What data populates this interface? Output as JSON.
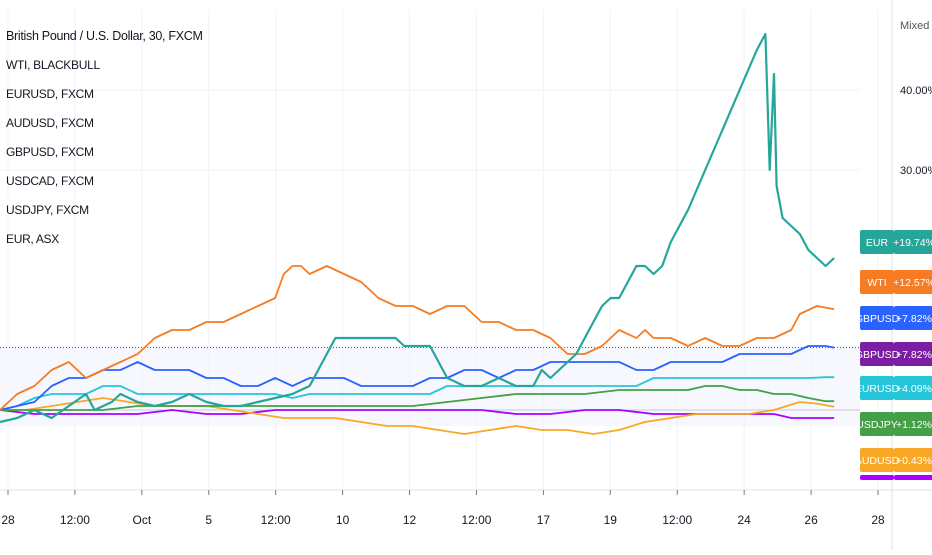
{
  "chart_data": {
    "type": "line",
    "title": "British Pound / U.S. Dollar, 30, FXCM",
    "scale_mode": "Mixed",
    "legend_placement": "top-left",
    "legend": [
      "British Pound / U.S. Dollar, 30, FXCM",
      "WTI, BLACKBULL",
      "EURUSD, FXCM",
      "AUDUSD, FXCM",
      "GBPUSD, FXCM",
      "USDCAD, FXCM",
      "USDJPY, FXCM",
      "EUR, ASX"
    ],
    "x_ticks": [
      "28",
      "12:00",
      "Oct",
      "5",
      "12:00",
      "10",
      "12",
      "12:00",
      "17",
      "19",
      "12:00",
      "24",
      "26",
      "28"
    ],
    "y_ticks": [
      "40.00%",
      "30.00%"
    ],
    "ylim": [
      -10,
      50
    ],
    "grid": true,
    "reference_line": {
      "label": "GBPUSD",
      "value": 7.82
    },
    "series": [
      {
        "name": "EUR",
        "color": "#26a69a",
        "last_label": "+19.74%",
        "points": [
          [
            0,
            -1.5
          ],
          [
            2,
            -1
          ],
          [
            4,
            0
          ],
          [
            6,
            -1
          ],
          [
            8,
            0.5
          ],
          [
            10,
            2
          ],
          [
            11,
            0
          ],
          [
            13,
            1
          ],
          [
            14,
            2
          ],
          [
            16,
            1
          ],
          [
            18,
            0.5
          ],
          [
            20,
            1
          ],
          [
            22,
            2
          ],
          [
            24,
            1
          ],
          [
            26,
            0.5
          ],
          [
            28,
            0.5
          ],
          [
            30,
            1
          ],
          [
            32,
            1.5
          ],
          [
            34,
            2
          ],
          [
            36,
            3
          ],
          [
            37,
            5
          ],
          [
            38,
            7
          ],
          [
            39,
            9
          ],
          [
            40,
            9
          ],
          [
            42,
            9
          ],
          [
            44,
            9
          ],
          [
            46,
            9
          ],
          [
            47,
            8
          ],
          [
            48,
            8
          ],
          [
            50,
            8
          ],
          [
            52,
            4
          ],
          [
            54,
            3
          ],
          [
            56,
            3
          ],
          [
            58,
            4
          ],
          [
            60,
            3
          ],
          [
            62,
            3
          ],
          [
            63,
            5
          ],
          [
            64,
            4
          ],
          [
            65,
            5
          ],
          [
            66,
            6
          ],
          [
            67,
            7
          ],
          [
            68,
            9
          ],
          [
            69,
            11
          ],
          [
            70,
            13
          ],
          [
            71,
            14
          ],
          [
            72,
            14
          ],
          [
            73,
            16
          ],
          [
            74,
            18
          ],
          [
            75,
            18
          ],
          [
            76,
            17
          ],
          [
            77,
            18
          ],
          [
            78,
            21
          ],
          [
            80,
            25
          ],
          [
            82,
            30
          ],
          [
            84,
            35
          ],
          [
            86,
            40
          ],
          [
            88,
            45
          ],
          [
            89,
            47
          ],
          [
            89.5,
            30
          ],
          [
            90,
            42
          ],
          [
            90.3,
            28
          ],
          [
            91,
            24
          ],
          [
            92,
            23
          ],
          [
            93,
            22
          ],
          [
            94,
            20
          ],
          [
            95,
            19
          ],
          [
            96,
            18
          ],
          [
            97,
            19
          ]
        ]
      },
      {
        "name": "WTI",
        "color": "#f57c22",
        "last_label": "+12.57%",
        "points": [
          [
            0,
            0
          ],
          [
            2,
            2
          ],
          [
            4,
            3
          ],
          [
            6,
            5
          ],
          [
            8,
            6
          ],
          [
            10,
            4
          ],
          [
            12,
            5
          ],
          [
            14,
            6
          ],
          [
            16,
            7
          ],
          [
            18,
            9
          ],
          [
            20,
            10
          ],
          [
            22,
            10
          ],
          [
            24,
            11
          ],
          [
            26,
            11
          ],
          [
            28,
            12
          ],
          [
            30,
            13
          ],
          [
            32,
            14
          ],
          [
            33,
            17
          ],
          [
            34,
            18
          ],
          [
            35,
            18
          ],
          [
            36,
            17
          ],
          [
            38,
            18
          ],
          [
            40,
            17
          ],
          [
            42,
            16
          ],
          [
            44,
            14
          ],
          [
            46,
            13
          ],
          [
            48,
            13
          ],
          [
            50,
            12
          ],
          [
            52,
            13
          ],
          [
            54,
            13
          ],
          [
            56,
            11
          ],
          [
            58,
            11
          ],
          [
            60,
            10
          ],
          [
            62,
            10
          ],
          [
            64,
            9
          ],
          [
            65,
            8
          ],
          [
            66,
            7
          ],
          [
            68,
            7
          ],
          [
            70,
            8
          ],
          [
            72,
            10
          ],
          [
            74,
            9
          ],
          [
            75,
            10
          ],
          [
            76,
            9
          ],
          [
            78,
            9
          ],
          [
            80,
            8
          ],
          [
            82,
            9
          ],
          [
            84,
            8
          ],
          [
            86,
            8
          ],
          [
            88,
            9
          ],
          [
            90,
            9
          ],
          [
            92,
            10
          ],
          [
            93,
            12
          ],
          [
            95,
            13
          ],
          [
            97,
            12.6
          ]
        ]
      },
      {
        "name": "GBPUSD",
        "color": "#2962ff",
        "last_label": "+7.82%",
        "points": [
          [
            0,
            0
          ],
          [
            2,
            0.5
          ],
          [
            4,
            1
          ],
          [
            6,
            3
          ],
          [
            8,
            4
          ],
          [
            10,
            4
          ],
          [
            12,
            5
          ],
          [
            14,
            5
          ],
          [
            16,
            6
          ],
          [
            18,
            5
          ],
          [
            20,
            5
          ],
          [
            22,
            5
          ],
          [
            24,
            4
          ],
          [
            26,
            4
          ],
          [
            28,
            3
          ],
          [
            30,
            3
          ],
          [
            32,
            4
          ],
          [
            34,
            3
          ],
          [
            36,
            4
          ],
          [
            38,
            4
          ],
          [
            40,
            4
          ],
          [
            42,
            3
          ],
          [
            44,
            3
          ],
          [
            46,
            3
          ],
          [
            48,
            3
          ],
          [
            50,
            4
          ],
          [
            52,
            4
          ],
          [
            54,
            5
          ],
          [
            56,
            5
          ],
          [
            58,
            4
          ],
          [
            60,
            5
          ],
          [
            62,
            5
          ],
          [
            64,
            6
          ],
          [
            66,
            6
          ],
          [
            68,
            6
          ],
          [
            70,
            6
          ],
          [
            72,
            6
          ],
          [
            74,
            5
          ],
          [
            76,
            5
          ],
          [
            78,
            6
          ],
          [
            80,
            6
          ],
          [
            82,
            6
          ],
          [
            84,
            6
          ],
          [
            86,
            7
          ],
          [
            88,
            7
          ],
          [
            90,
            7
          ],
          [
            92,
            7
          ],
          [
            94,
            8
          ],
          [
            96,
            8
          ],
          [
            97,
            7.8
          ]
        ]
      },
      {
        "name": "EURUSD",
        "color": "#26c6da",
        "last_label": "+4.09%",
        "points": [
          [
            0,
            0
          ],
          [
            2,
            0.5
          ],
          [
            4,
            1.5
          ],
          [
            6,
            2
          ],
          [
            8,
            2
          ],
          [
            10,
            2
          ],
          [
            12,
            3
          ],
          [
            14,
            3
          ],
          [
            16,
            2
          ],
          [
            18,
            2
          ],
          [
            20,
            2
          ],
          [
            22,
            2
          ],
          [
            24,
            2
          ],
          [
            26,
            2
          ],
          [
            28,
            2
          ],
          [
            30,
            2
          ],
          [
            32,
            2
          ],
          [
            34,
            1.5
          ],
          [
            36,
            2
          ],
          [
            38,
            2
          ],
          [
            40,
            2
          ],
          [
            42,
            2
          ],
          [
            44,
            2
          ],
          [
            46,
            2
          ],
          [
            48,
            2
          ],
          [
            50,
            2
          ],
          [
            52,
            3
          ],
          [
            54,
            3
          ],
          [
            56,
            3
          ],
          [
            58,
            3
          ],
          [
            60,
            3
          ],
          [
            62,
            3
          ],
          [
            64,
            3
          ],
          [
            66,
            3
          ],
          [
            68,
            3
          ],
          [
            70,
            3
          ],
          [
            72,
            3
          ],
          [
            74,
            3
          ],
          [
            76,
            4
          ],
          [
            78,
            4
          ],
          [
            80,
            4
          ],
          [
            82,
            4
          ],
          [
            84,
            4
          ],
          [
            86,
            4
          ],
          [
            88,
            4
          ],
          [
            90,
            4
          ],
          [
            92,
            4
          ],
          [
            94,
            4
          ],
          [
            96,
            4.1
          ],
          [
            97,
            4.1
          ]
        ]
      },
      {
        "name": "USDJPY",
        "color": "#43a047",
        "last_label": "+1.12%",
        "points": [
          [
            0,
            0
          ],
          [
            4,
            0
          ],
          [
            8,
            0
          ],
          [
            12,
            0
          ],
          [
            16,
            0.5
          ],
          [
            20,
            0.5
          ],
          [
            24,
            0.5
          ],
          [
            28,
            0.5
          ],
          [
            32,
            0.5
          ],
          [
            36,
            0.5
          ],
          [
            40,
            0.5
          ],
          [
            44,
            0.5
          ],
          [
            48,
            0.5
          ],
          [
            52,
            1
          ],
          [
            56,
            1.5
          ],
          [
            60,
            2
          ],
          [
            64,
            2
          ],
          [
            68,
            2
          ],
          [
            72,
            2.5
          ],
          [
            76,
            2.5
          ],
          [
            80,
            2.5
          ],
          [
            82,
            3
          ],
          [
            84,
            3
          ],
          [
            86,
            2.5
          ],
          [
            88,
            2.5
          ],
          [
            90,
            2
          ],
          [
            92,
            2
          ],
          [
            94,
            1.5
          ],
          [
            96,
            1.1
          ],
          [
            97,
            1.1
          ]
        ]
      },
      {
        "name": "AUDUSD",
        "color": "#f9a825",
        "last_label": "+0.43%",
        "points": [
          [
            0,
            0
          ],
          [
            3,
            0
          ],
          [
            6,
            0.5
          ],
          [
            9,
            1
          ],
          [
            12,
            1.5
          ],
          [
            15,
            1
          ],
          [
            18,
            0.5
          ],
          [
            21,
            0.5
          ],
          [
            24,
            0.5
          ],
          [
            27,
            0
          ],
          [
            30,
            -0.5
          ],
          [
            33,
            -1
          ],
          [
            36,
            -1
          ],
          [
            39,
            -1
          ],
          [
            42,
            -1.5
          ],
          [
            45,
            -2
          ],
          [
            48,
            -2
          ],
          [
            51,
            -2.5
          ],
          [
            54,
            -3
          ],
          [
            57,
            -2.5
          ],
          [
            60,
            -2
          ],
          [
            63,
            -2.5
          ],
          [
            66,
            -2.5
          ],
          [
            69,
            -3
          ],
          [
            72,
            -2.5
          ],
          [
            75,
            -1.5
          ],
          [
            78,
            -1
          ],
          [
            81,
            -0.5
          ],
          [
            84,
            -0.5
          ],
          [
            87,
            -0.5
          ],
          [
            90,
            0
          ],
          [
            93,
            1
          ],
          [
            95,
            0.8
          ],
          [
            97,
            0.4
          ]
        ]
      },
      {
        "name": "USDCAD",
        "color": "#aa00ff",
        "last_label": "",
        "points": [
          [
            0,
            0
          ],
          [
            4,
            -0.5
          ],
          [
            8,
            -0.5
          ],
          [
            12,
            -0.5
          ],
          [
            16,
            -0.5
          ],
          [
            20,
            0
          ],
          [
            24,
            -0.5
          ],
          [
            28,
            -0.5
          ],
          [
            32,
            0
          ],
          [
            36,
            0
          ],
          [
            40,
            0
          ],
          [
            44,
            0
          ],
          [
            48,
            0
          ],
          [
            52,
            0
          ],
          [
            56,
            0
          ],
          [
            60,
            -0.5
          ],
          [
            64,
            -0.5
          ],
          [
            68,
            0
          ],
          [
            72,
            0
          ],
          [
            76,
            -0.5
          ],
          [
            80,
            -0.5
          ],
          [
            84,
            -0.5
          ],
          [
            88,
            -0.5
          ],
          [
            90,
            -0.5
          ],
          [
            92,
            -1
          ],
          [
            94,
            -1
          ],
          [
            96,
            -1
          ],
          [
            97,
            -1
          ]
        ]
      }
    ]
  }
}
